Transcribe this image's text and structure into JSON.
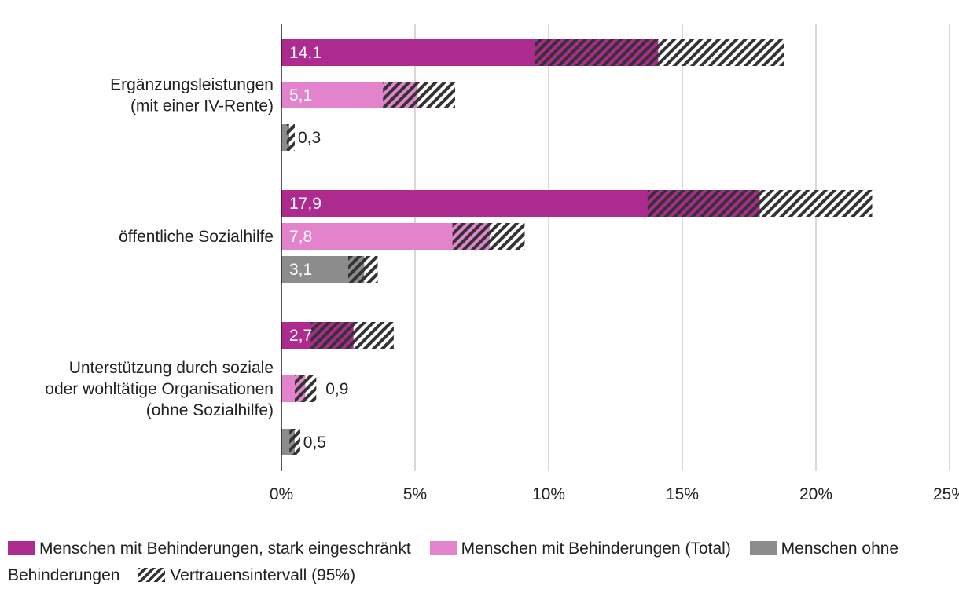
{
  "chart_data": {
    "type": "bar",
    "orientation": "horizontal",
    "categories": [
      [
        "Ergänzungsleistungen",
        "(mit einer IV-Rente)"
      ],
      [
        "öffentliche Sozialhilfe"
      ],
      [
        "Unterstützung durch soziale",
        "oder wohltätige Organisationen",
        "(ohne Sozialhilfe)"
      ]
    ],
    "series": [
      {
        "name": "Menschen mit Behinderungen, stark eingeschränkt",
        "color": "#ad2a8f",
        "values": [
          14.1,
          17.9,
          2.7
        ],
        "labels": [
          "14,1",
          "17,9",
          "2,7"
        ],
        "ci": [
          [
            9.5,
            18.8
          ],
          [
            13.7,
            22.1
          ],
          [
            1.1,
            4.2
          ]
        ]
      },
      {
        "name": "Menschen mit Behinderungen (Total)",
        "color": "#e283cc",
        "values": [
          5.1,
          7.8,
          0.9
        ],
        "labels": [
          "5,1",
          "7,8",
          "0,9"
        ],
        "ci": [
          [
            3.8,
            6.5
          ],
          [
            6.4,
            9.1
          ],
          [
            0.5,
            1.3
          ]
        ]
      },
      {
        "name": "Menschen ohne Behinderungen",
        "color": "#8c8c8c",
        "values": [
          0.3,
          3.1,
          0.5
        ],
        "labels": [
          "0,3",
          "3,1",
          "0,5"
        ],
        "ci": [
          [
            0.2,
            0.5
          ],
          [
            2.5,
            3.6
          ],
          [
            0.3,
            0.7
          ]
        ]
      }
    ],
    "ci_label": "Vertrauensintervall (95%)",
    "xlim": [
      0,
      25
    ],
    "xticks": [
      0,
      5,
      10,
      15,
      20,
      25
    ],
    "xtick_labels": [
      "0%",
      "5%",
      "10%",
      "15%",
      "20%",
      "25%"
    ],
    "grid": "vertical",
    "legend_position": "bottom"
  },
  "legend": {
    "item1": "Menschen mit Behinderungen, stark eingeschränkt",
    "item2": "Menschen mit Behinderungen (Total)",
    "item3": "Menschen ohne Behinderungen",
    "item4": "Vertrauensintervall (95%)"
  }
}
